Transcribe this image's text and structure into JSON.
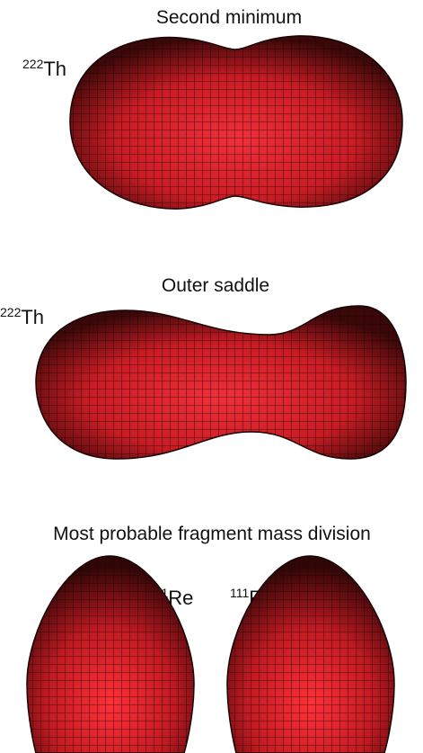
{
  "panels": [
    {
      "title": "Second minimum",
      "nuclei": [
        {
          "mass": "222",
          "element": "Th"
        }
      ]
    },
    {
      "title": "Outer saddle",
      "nuclei": [
        {
          "mass": "222",
          "element": "Th"
        }
      ]
    },
    {
      "title": "Most probable fragment mass division",
      "nuclei": [
        {
          "mass": "111",
          "element": "Re"
        },
        {
          "mass": "111",
          "element": "Re"
        }
      ]
    }
  ]
}
